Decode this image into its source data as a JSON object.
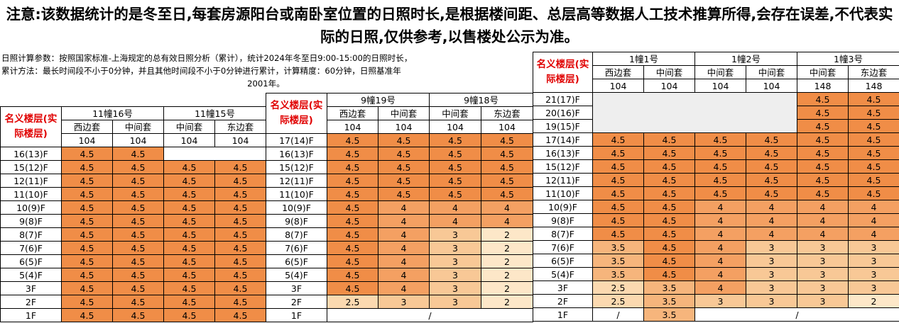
{
  "notice": "注意:该数据统计的是冬至日,每套房源阳台或南卧室位置的日照时长,是根据楼间距、总层高等数据人工技术推算所得,会存在误差,不代表实际的日照,仅供参考,以售楼处公示为准。",
  "params": {
    "line1": "日照计算参数：按照国家标准-上海规定的总有效日照分析（累计），统计2024年冬至日9:00-15:00的日照时长，",
    "line2": "累计方法：最长时间段不小于0分钟，并且其他时间段不小于0分钟进行累计，计算精度：60分钟，日照基准年",
    "line3": "2001年。"
  },
  "floor_label": "名义楼层(实际楼层)",
  "colors": {
    "4.5": "#f08d47",
    "4": "#f4a062",
    "3.5": "#f6b57c",
    "3": "#f8c896",
    "2.5": "#fbd9b0",
    "2": "#fde7c8"
  },
  "t1": {
    "buildings": [
      "11幢16号",
      "11幢15号"
    ],
    "units": [
      "西边套",
      "中间套",
      "中间套",
      "东边套"
    ],
    "areas": [
      "104",
      "104",
      "104",
      "104"
    ],
    "rows": [
      {
        "floor": "16(13)F",
        "v": [
          "4.5",
          "4.5",
          "",
          ""
        ]
      },
      {
        "floor": "15(12)F",
        "v": [
          "4.5",
          "4.5",
          "4.5",
          "4.5"
        ]
      },
      {
        "floor": "12(11)F",
        "v": [
          "4.5",
          "4.5",
          "4.5",
          "4.5"
        ]
      },
      {
        "floor": "11(10)F",
        "v": [
          "4.5",
          "4.5",
          "4.5",
          "4.5"
        ]
      },
      {
        "floor": "10(9)F",
        "v": [
          "4.5",
          "4.5",
          "4.5",
          "4.5"
        ]
      },
      {
        "floor": "9(8)F",
        "v": [
          "4.5",
          "4.5",
          "4.5",
          "4.5"
        ]
      },
      {
        "floor": "8(7)F",
        "v": [
          "4.5",
          "4.5",
          "4.5",
          "4.5"
        ]
      },
      {
        "floor": "7(6)F",
        "v": [
          "4.5",
          "4.5",
          "4.5",
          "4.5"
        ]
      },
      {
        "floor": "6(5)F",
        "v": [
          "4.5",
          "4.5",
          "4.5",
          "4.5"
        ]
      },
      {
        "floor": "5(4)F",
        "v": [
          "4.5",
          "4.5",
          "4.5",
          "4.5"
        ]
      },
      {
        "floor": "3F",
        "v": [
          "4.5",
          "4.5",
          "4.5",
          "4.5"
        ]
      },
      {
        "floor": "2F",
        "v": [
          "4.5",
          "4.5",
          "4.5",
          "4.5"
        ]
      },
      {
        "floor": "1F",
        "v": [
          "4.5",
          "4.5",
          "4.5",
          "4.5"
        ]
      }
    ]
  },
  "t2": {
    "buildings": [
      "9幢19号",
      "9幢18号"
    ],
    "units": [
      "西边套",
      "中间套",
      "中间套",
      "东边套"
    ],
    "areas": [
      "104",
      "104",
      "104",
      "104"
    ],
    "rows": [
      {
        "floor": "17(14)F",
        "v": [
          "4.5",
          "4.5",
          "4.5",
          "4.5"
        ]
      },
      {
        "floor": "16(13)F",
        "v": [
          "4.5",
          "4.5",
          "4.5",
          "4.5"
        ]
      },
      {
        "floor": "15(12)F",
        "v": [
          "4.5",
          "4.5",
          "4.5",
          "4.5"
        ]
      },
      {
        "floor": "12(11)F",
        "v": [
          "4.5",
          "4.5",
          "4.5",
          "4.5"
        ]
      },
      {
        "floor": "11(10)F",
        "v": [
          "4.5",
          "4.5",
          "4.5",
          "4.5"
        ]
      },
      {
        "floor": "10(9)F",
        "v": [
          "4.5",
          "4",
          "4",
          "4"
        ]
      },
      {
        "floor": "9(8)F",
        "v": [
          "4.5",
          "4",
          "4",
          "4"
        ]
      },
      {
        "floor": "8(7)F",
        "v": [
          "4.5",
          "4",
          "3",
          "2"
        ]
      },
      {
        "floor": "7(6)F",
        "v": [
          "4.5",
          "4",
          "3",
          "2"
        ]
      },
      {
        "floor": "6(5)F",
        "v": [
          "4.5",
          "4",
          "3",
          "2"
        ]
      },
      {
        "floor": "5(4)F",
        "v": [
          "4.5",
          "4",
          "3",
          "2"
        ]
      },
      {
        "floor": "3F",
        "v": [
          "4.5",
          "4",
          "3",
          "2"
        ]
      },
      {
        "floor": "2F",
        "v": [
          "2.5",
          "3",
          "3",
          "2"
        ]
      }
    ],
    "last_floor": "1F",
    "last_value": "/"
  },
  "t3": {
    "buildings": [
      "1幢1号",
      "1幢2号",
      "1幢3号"
    ],
    "units": [
      "西边套",
      "中间套",
      "中间套",
      "中间套",
      "中间套",
      "东边套"
    ],
    "areas": [
      "104",
      "104",
      "104",
      "104",
      "148",
      "148"
    ],
    "top_rows": [
      {
        "floor": "21(17)F",
        "v": [
          "4.5",
          "4.5"
        ]
      },
      {
        "floor": "20(16)F",
        "v": [
          "4.5",
          "4.5"
        ]
      },
      {
        "floor": "19(15)F",
        "v": [
          "4.5",
          "4.5"
        ]
      }
    ],
    "rows": [
      {
        "floor": "17(14)F",
        "v": [
          "4.5",
          "4.5",
          "4.5",
          "4.5",
          "4.5",
          "4.5"
        ]
      },
      {
        "floor": "16(13)F",
        "v": [
          "4.5",
          "4.5",
          "4.5",
          "4.5",
          "4.5",
          "4.5"
        ]
      },
      {
        "floor": "15(12)F",
        "v": [
          "4.5",
          "4.5",
          "4.5",
          "4.5",
          "4.5",
          "4.5"
        ]
      },
      {
        "floor": "12(11)F",
        "v": [
          "4.5",
          "4.5",
          "4.5",
          "4.5",
          "4.5",
          "4.5"
        ]
      },
      {
        "floor": "11(10)F",
        "v": [
          "4.5",
          "4.5",
          "4.5",
          "4.5",
          "4.5",
          "4.5"
        ]
      },
      {
        "floor": "10(9)F",
        "v": [
          "4.5",
          "4.5",
          "4",
          "4",
          "4",
          "4"
        ]
      },
      {
        "floor": "9(8)F",
        "v": [
          "4.5",
          "4.5",
          "4",
          "4",
          "4",
          "4"
        ]
      },
      {
        "floor": "8(7)F",
        "v": [
          "4.5",
          "4.5",
          "4",
          "4",
          "4",
          "4"
        ]
      },
      {
        "floor": "7(6)F",
        "v": [
          "3.5",
          "4.5",
          "4",
          "3",
          "3",
          "3"
        ]
      },
      {
        "floor": "6(5)F",
        "v": [
          "3.5",
          "4.5",
          "4",
          "3",
          "3",
          "3"
        ]
      },
      {
        "floor": "5(4)F",
        "v": [
          "3.5",
          "4.5",
          "4",
          "3",
          "3",
          "3"
        ]
      },
      {
        "floor": "3F",
        "v": [
          "2.5",
          "3.5",
          "4",
          "3",
          "3",
          "3"
        ]
      },
      {
        "floor": "2F",
        "v": [
          "2.5",
          "3.5",
          "3",
          "3",
          "3",
          "2"
        ]
      }
    ],
    "last_floor": "1F",
    "last_values": [
      "/",
      "3.5",
      "/"
    ]
  }
}
